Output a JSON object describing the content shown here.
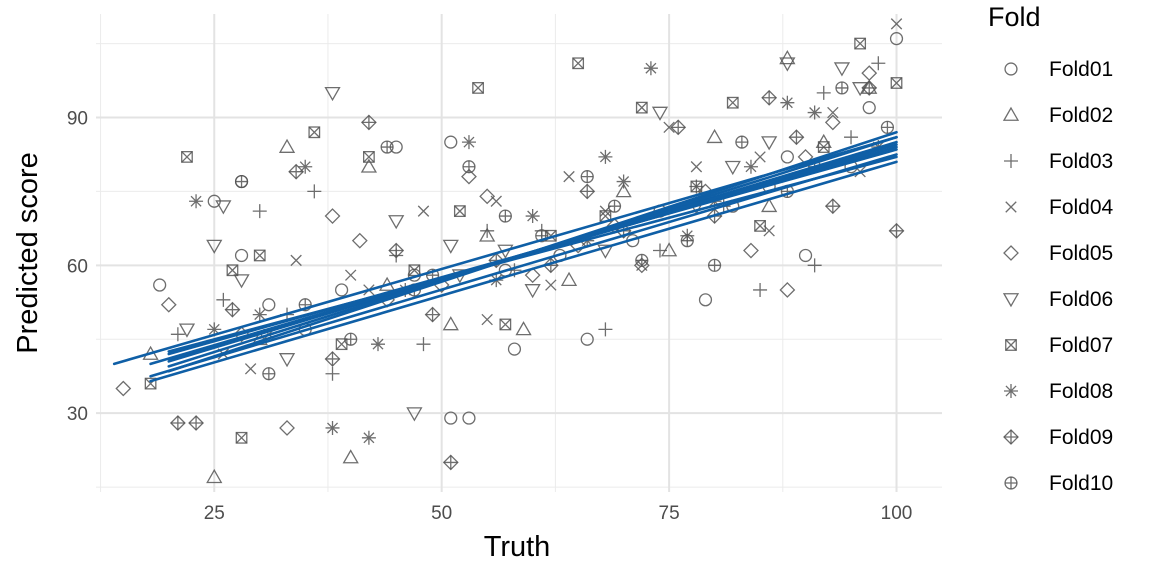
{
  "chart_data": {
    "type": "scatter",
    "xlabel": "Truth",
    "ylabel": "Predicted score",
    "xlim": [
      12,
      105
    ],
    "ylim": [
      14,
      111
    ],
    "x_ticks": [
      25,
      50,
      75,
      100
    ],
    "y_ticks": [
      30,
      60,
      90
    ],
    "grid": true,
    "legend_position": "right",
    "legend_title": "Fold",
    "point_color": "#555555",
    "line_color": "#0F5FA6",
    "series": [
      {
        "name": "Fold01",
        "shape": "circle",
        "points": [
          [
            19,
            56
          ],
          [
            25,
            73
          ],
          [
            28,
            62
          ],
          [
            28,
            77
          ],
          [
            39,
            55
          ],
          [
            45,
            84
          ],
          [
            51,
            85
          ],
          [
            51,
            29
          ],
          [
            53,
            29
          ],
          [
            58,
            43
          ],
          [
            66,
            45
          ],
          [
            71,
            65
          ],
          [
            79,
            53
          ],
          [
            82,
            72
          ],
          [
            86,
            76
          ],
          [
            90,
            62
          ],
          [
            95,
            80
          ],
          [
            100,
            106
          ],
          [
            31,
            52
          ],
          [
            47,
            58
          ],
          [
            63,
            62
          ],
          [
            88,
            82
          ],
          [
            97,
            92
          ],
          [
            35,
            47
          ],
          [
            57,
            59
          ],
          [
            74,
            71
          ]
        ],
        "fit": [
          [
            20,
            40.5
          ],
          [
            100,
            85.0
          ]
        ]
      },
      {
        "name": "Fold02",
        "shape": "triangle",
        "points": [
          [
            18,
            42
          ],
          [
            25,
            17
          ],
          [
            33,
            84
          ],
          [
            40,
            21
          ],
          [
            42,
            80
          ],
          [
            51,
            48
          ],
          [
            59,
            47
          ],
          [
            75,
            63
          ],
          [
            86,
            72
          ],
          [
            88,
            102
          ],
          [
            97,
            96
          ],
          [
            55,
            66
          ],
          [
            70,
            75
          ],
          [
            80,
            86
          ],
          [
            92,
            85
          ],
          [
            30,
            45
          ],
          [
            44,
            56
          ],
          [
            64,
            57
          ]
        ],
        "fit": [
          [
            20,
            38.5
          ],
          [
            100,
            87.0
          ]
        ]
      },
      {
        "name": "Fold03",
        "shape": "plus",
        "points": [
          [
            21,
            46
          ],
          [
            30,
            71
          ],
          [
            36,
            75
          ],
          [
            38,
            38
          ],
          [
            45,
            62
          ],
          [
            55,
            67
          ],
          [
            61,
            67
          ],
          [
            68,
            47
          ],
          [
            74,
            63
          ],
          [
            81,
            72
          ],
          [
            85,
            55
          ],
          [
            91,
            60
          ],
          [
            98,
            101
          ],
          [
            92,
            95
          ],
          [
            33,
            50
          ],
          [
            48,
            44
          ],
          [
            58,
            59
          ],
          [
            78,
            76
          ],
          [
            95,
            86
          ],
          [
            26,
            53
          ]
        ],
        "fit": [
          [
            20,
            42.0
          ],
          [
            100,
            83.5
          ]
        ]
      },
      {
        "name": "Fold04",
        "shape": "cross",
        "points": [
          [
            26,
            42
          ],
          [
            29,
            39
          ],
          [
            34,
            61
          ],
          [
            42,
            55
          ],
          [
            48,
            71
          ],
          [
            56,
            73
          ],
          [
            62,
            56
          ],
          [
            68,
            71
          ],
          [
            72,
            60
          ],
          [
            78,
            80
          ],
          [
            85,
            82
          ],
          [
            93,
            91
          ],
          [
            100,
            109
          ],
          [
            86,
            67
          ],
          [
            55,
            49
          ],
          [
            40,
            58
          ],
          [
            64,
            78
          ],
          [
            96,
            79
          ],
          [
            31,
            46
          ],
          [
            75,
            88
          ]
        ],
        "fit": [
          [
            18,
            37.5
          ],
          [
            100,
            82.5
          ]
        ]
      },
      {
        "name": "Fold05",
        "shape": "diamond",
        "points": [
          [
            15,
            35
          ],
          [
            20,
            52
          ],
          [
            33,
            27
          ],
          [
            38,
            70
          ],
          [
            44,
            53
          ],
          [
            50,
            56
          ],
          [
            53,
            78
          ],
          [
            60,
            58
          ],
          [
            65,
            64
          ],
          [
            72,
            60
          ],
          [
            79,
            75
          ],
          [
            84,
            63
          ],
          [
            88,
            55
          ],
          [
            93,
            89
          ],
          [
            97,
            99
          ],
          [
            55,
            74
          ],
          [
            69,
            68
          ],
          [
            28,
            46
          ],
          [
            41,
            65
          ],
          [
            90,
            82
          ]
        ],
        "fit": [
          [
            20,
            41.0
          ],
          [
            100,
            84.0
          ]
        ]
      },
      {
        "name": "Fold06",
        "shape": "triangle-down",
        "points": [
          [
            22,
            47
          ],
          [
            25,
            64
          ],
          [
            26,
            72
          ],
          [
            28,
            57
          ],
          [
            38,
            95
          ],
          [
            45,
            69
          ],
          [
            47,
            30
          ],
          [
            52,
            58
          ],
          [
            57,
            63
          ],
          [
            68,
            63
          ],
          [
            74,
            91
          ],
          [
            82,
            80
          ],
          [
            88,
            101
          ],
          [
            94,
            100
          ],
          [
            96,
            96
          ],
          [
            60,
            55
          ],
          [
            78,
            72
          ],
          [
            33,
            41
          ],
          [
            51,
            64
          ],
          [
            86,
            85
          ]
        ],
        "fit": [
          [
            20,
            39.5
          ],
          [
            100,
            86.0
          ]
        ]
      },
      {
        "name": "Fold07",
        "shape": "square-x",
        "points": [
          [
            18,
            36
          ],
          [
            22,
            82
          ],
          [
            27,
            59
          ],
          [
            28,
            25
          ],
          [
            36,
            87
          ],
          [
            42,
            82
          ],
          [
            54,
            96
          ],
          [
            57,
            48
          ],
          [
            65,
            101
          ],
          [
            72,
            92
          ],
          [
            78,
            76
          ],
          [
            85,
            68
          ],
          [
            92,
            84
          ],
          [
            96,
            105
          ],
          [
            100,
            97
          ],
          [
            30,
            62
          ],
          [
            47,
            59
          ],
          [
            62,
            66
          ],
          [
            82,
            93
          ],
          [
            39,
            44
          ],
          [
            68,
            70
          ],
          [
            52,
            71
          ]
        ],
        "fit": [
          [
            18,
            36.5
          ],
          [
            100,
            81.0
          ]
        ]
      },
      {
        "name": "Fold08",
        "shape": "asterisk",
        "points": [
          [
            23,
            73
          ],
          [
            25,
            47
          ],
          [
            35,
            80
          ],
          [
            38,
            27
          ],
          [
            42,
            25
          ],
          [
            46,
            55
          ],
          [
            53,
            85
          ],
          [
            60,
            70
          ],
          [
            66,
            65
          ],
          [
            68,
            82
          ],
          [
            73,
            100
          ],
          [
            80,
            73
          ],
          [
            84,
            80
          ],
          [
            91,
            91
          ],
          [
            98,
            84
          ],
          [
            56,
            57
          ],
          [
            70,
            77
          ],
          [
            43,
            44
          ],
          [
            88,
            93
          ],
          [
            30,
            50
          ],
          [
            77,
            66
          ]
        ],
        "fit": [
          [
            18,
            40.0
          ],
          [
            100,
            84.5
          ]
        ]
      },
      {
        "name": "Fold09",
        "shape": "diamond-plus",
        "points": [
          [
            21,
            28
          ],
          [
            23,
            28
          ],
          [
            34,
            79
          ],
          [
            42,
            89
          ],
          [
            49,
            50
          ],
          [
            51,
            20
          ],
          [
            56,
            61
          ],
          [
            62,
            60
          ],
          [
            70,
            67
          ],
          [
            76,
            88
          ],
          [
            80,
            70
          ],
          [
            86,
            94
          ],
          [
            93,
            72
          ],
          [
            97,
            96
          ],
          [
            100,
            67
          ],
          [
            27,
            51
          ],
          [
            38,
            41
          ],
          [
            45,
            63
          ],
          [
            66,
            75
          ],
          [
            89,
            86
          ]
        ],
        "fit": [
          [
            14,
            40.0
          ],
          [
            100,
            86.0
          ]
        ]
      },
      {
        "name": "Fold10",
        "shape": "circle-plus",
        "points": [
          [
            28,
            77
          ],
          [
            35,
            52
          ],
          [
            44,
            84
          ],
          [
            49,
            58
          ],
          [
            53,
            80
          ],
          [
            61,
            66
          ],
          [
            66,
            78
          ],
          [
            72,
            61
          ],
          [
            77,
            65
          ],
          [
            83,
            85
          ],
          [
            88,
            75
          ],
          [
            94,
            96
          ],
          [
            99,
            88
          ],
          [
            57,
            70
          ],
          [
            40,
            45
          ],
          [
            31,
            38
          ],
          [
            69,
            72
          ],
          [
            91,
            80
          ],
          [
            47,
            55
          ],
          [
            80,
            60
          ]
        ],
        "fit": [
          [
            20,
            42.5
          ],
          [
            100,
            82.0
          ]
        ]
      }
    ]
  }
}
